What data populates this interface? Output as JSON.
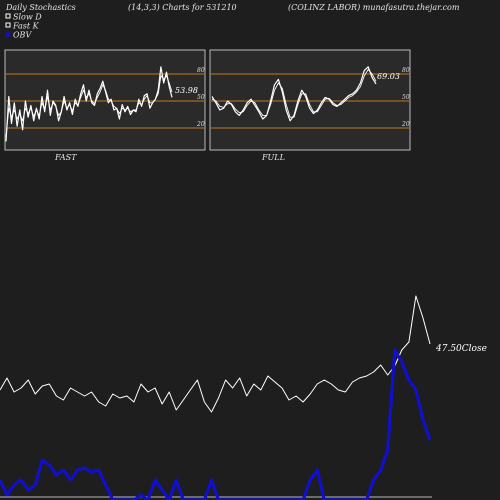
{
  "header": {
    "left": "Daily Stochastics",
    "center": "(14,3,3) Charts for 531210",
    "right": "(COLINZ LABOR) munafasutra.thejar.com"
  },
  "legend": [
    {
      "label": "Slow  D",
      "color": "#ffffff",
      "swatch": "outline"
    },
    {
      "label": "Fast K",
      "color": "#ffffff",
      "swatch": "outline"
    },
    {
      "label": "OBV",
      "color": "#1010cc",
      "swatch": "filled"
    }
  ],
  "colors": {
    "background": "#1e1e1e",
    "panel": "#2a2a2a",
    "guide": "#c07a1c",
    "line": "#ffffff",
    "obv": "#1010cc"
  },
  "chart_data": [
    {
      "type": "line",
      "name": "fast-stochastic-panel",
      "title": "FAST",
      "ylim": [
        0,
        100
      ],
      "yticks": [
        20,
        50,
        80
      ],
      "guides": [
        20,
        50,
        80
      ],
      "last_value_label": "53.98",
      "series": [
        {
          "name": "Fast K",
          "values": [
            5,
            55,
            25,
            48,
            22,
            40,
            18,
            50,
            32,
            45,
            28,
            42,
            30,
            55,
            38,
            62,
            34,
            50,
            45,
            28,
            38,
            55,
            40,
            48,
            35,
            52,
            44,
            58,
            68,
            50,
            62,
            48,
            45,
            58,
            64,
            72,
            60,
            48,
            52,
            40,
            42,
            30,
            46,
            38,
            44,
            35,
            40,
            38,
            52,
            44,
            56,
            58,
            42,
            48,
            52,
            62,
            88,
            70,
            82,
            66,
            54
          ]
        },
        {
          "name": "Slow  D",
          "values": [
            10,
            42,
            32,
            40,
            30,
            36,
            28,
            42,
            36,
            42,
            33,
            40,
            34,
            48,
            40,
            55,
            40,
            48,
            44,
            34,
            38,
            50,
            42,
            46,
            39,
            48,
            45,
            54,
            62,
            54,
            58,
            50,
            47,
            54,
            60,
            68,
            62,
            52,
            50,
            44,
            42,
            36,
            42,
            40,
            42,
            38,
            40,
            40,
            48,
            46,
            52,
            56,
            48,
            48,
            52,
            58,
            78,
            74,
            78,
            70,
            60
          ]
        }
      ]
    },
    {
      "type": "line",
      "name": "full-stochastic-panel",
      "title": "FULL",
      "ylim": [
        0,
        100
      ],
      "yticks": [
        20,
        50,
        80
      ],
      "guides": [
        20,
        50,
        80
      ],
      "last_value_label": "69.03",
      "series": [
        {
          "name": "Fast K",
          "values": [
            55,
            48,
            40,
            42,
            50,
            46,
            38,
            34,
            40,
            48,
            52,
            45,
            38,
            30,
            34,
            50,
            68,
            74,
            60,
            40,
            28,
            34,
            50,
            62,
            55,
            42,
            36,
            40,
            48,
            54,
            52,
            46,
            44,
            48,
            52,
            56,
            58,
            62,
            70,
            84,
            88,
            76,
            69
          ]
        },
        {
          "name": "Slow  D",
          "values": [
            52,
            50,
            44,
            43,
            47,
            47,
            41,
            37,
            38,
            45,
            50,
            48,
            40,
            34,
            34,
            46,
            62,
            70,
            64,
            46,
            32,
            32,
            46,
            58,
            58,
            46,
            38,
            38,
            45,
            52,
            53,
            48,
            45,
            46,
            50,
            54,
            56,
            60,
            66,
            78,
            85,
            80,
            72
          ]
        }
      ]
    },
    {
      "type": "line",
      "name": "price-obv-panel",
      "last_value_label": "47.50",
      "last_value_suffix": "Close",
      "series": [
        {
          "name": "Close",
          "values": [
            390,
            378,
            392,
            388,
            380,
            394,
            386,
            384,
            396,
            400,
            388,
            392,
            396,
            392,
            402,
            406,
            394,
            398,
            396,
            402,
            384,
            392,
            388,
            404,
            392,
            410,
            400,
            390,
            380,
            402,
            412,
            398,
            380,
            388,
            378,
            396,
            384,
            390,
            376,
            382,
            388,
            400,
            396,
            402,
            394,
            384,
            380,
            384,
            390,
            392,
            382,
            378,
            376,
            372,
            365,
            375,
            366,
            350,
            342,
            296,
            318,
            344
          ]
        },
        {
          "name": "OBV",
          "values": [
            480,
            495,
            485,
            480,
            490,
            485,
            460,
            465,
            475,
            470,
            480,
            470,
            468,
            472,
            470,
            485,
            500,
            500,
            500,
            500,
            495,
            500,
            480,
            490,
            500,
            480,
            500,
            500,
            500,
            500,
            480,
            500,
            500,
            500,
            500,
            500,
            500,
            500,
            500,
            500,
            500,
            500,
            500,
            500,
            480,
            470,
            500,
            500,
            500,
            500,
            500,
            500,
            500,
            480,
            470,
            450,
            350,
            362,
            380,
            390,
            420,
            440
          ]
        }
      ]
    }
  ]
}
